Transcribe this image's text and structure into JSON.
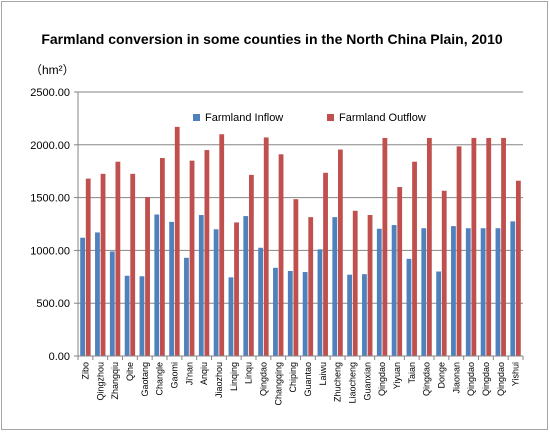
{
  "chart_data": {
    "type": "bar",
    "title": "Farmland conversion in some counties in the North China Plain, 2010",
    "unit_label": "（hm²）",
    "ylim": [
      0,
      2500
    ],
    "yticks": [
      "0.00",
      "500.00",
      "1000.00",
      "1500.00",
      "2000.00",
      "2500.00"
    ],
    "grid": true,
    "legend_position": "top",
    "categories": [
      "Zibo",
      "Qingzhou",
      "Zhangqiu",
      "Qihe",
      "Gaotang",
      "Changle",
      "Gaomi",
      "Ji'nan",
      "Anqiu",
      "Jiaozhou",
      "Linqing",
      "Linqu",
      "Qingdao",
      "Changqing",
      "Chiping",
      "Guantao",
      "Laiwu",
      "Zhucheng",
      "Liaocheng",
      "Guanxian",
      "Qingdao",
      "Yiyuan",
      "Taian",
      "Qingdao",
      "Dongе",
      "Jiaonan",
      "Qingdao",
      "Qingdao",
      "Qingdao",
      "Yishui"
    ],
    "series": [
      {
        "name": "Farmland Inflow",
        "color": "#4f81bd",
        "values": [
          1120,
          1170,
          990,
          760,
          755,
          1340,
          1270,
          930,
          1335,
          1200,
          745,
          1325,
          1025,
          835,
          805,
          795,
          1010,
          1315,
          770,
          775,
          1205,
          1240,
          920,
          1210,
          800,
          1230,
          1210,
          1210,
          1210,
          1275
        ]
      },
      {
        "name": "Farmland Outflow",
        "color": "#c0504d",
        "values": [
          1680,
          1725,
          1840,
          1725,
          1505,
          1875,
          2170,
          1850,
          1950,
          2100,
          1265,
          1715,
          2070,
          1910,
          1485,
          1315,
          1735,
          1955,
          1375,
          1335,
          2065,
          1600,
          1840,
          2065,
          1565,
          1985,
          2065,
          2065,
          2065,
          1660
        ]
      }
    ]
  }
}
